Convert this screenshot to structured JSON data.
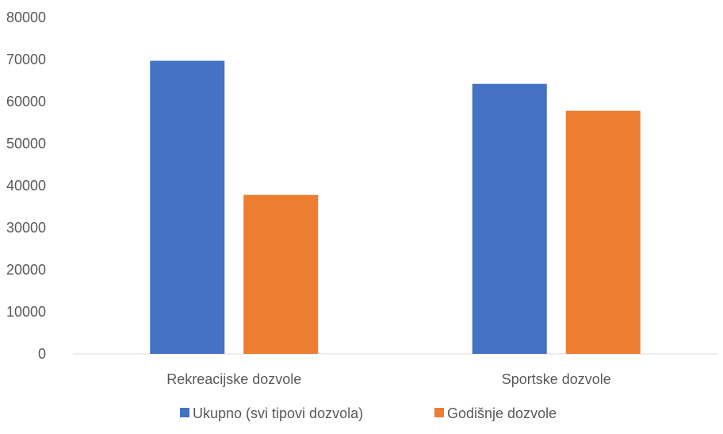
{
  "chart_data": {
    "type": "bar",
    "categories": [
      "Rekreacijske dozvole",
      "Sportske dozvole"
    ],
    "series": [
      {
        "name": "Ukupno (svi tipovi dozvola)",
        "color": "#4472C4",
        "values": [
          69700,
          64200
        ]
      },
      {
        "name": "Godišnje dozvole",
        "color": "#ED7D31",
        "values": [
          37800,
          57800
        ]
      }
    ],
    "ylim": [
      0,
      80000
    ],
    "yticks": [
      "0",
      "10000",
      "20000",
      "30000",
      "40000",
      "50000",
      "60000",
      "70000",
      "80000"
    ],
    "grid": false,
    "legend_position": "bottom",
    "axis_color": "#d9d9d9",
    "text_color": "#595959"
  }
}
